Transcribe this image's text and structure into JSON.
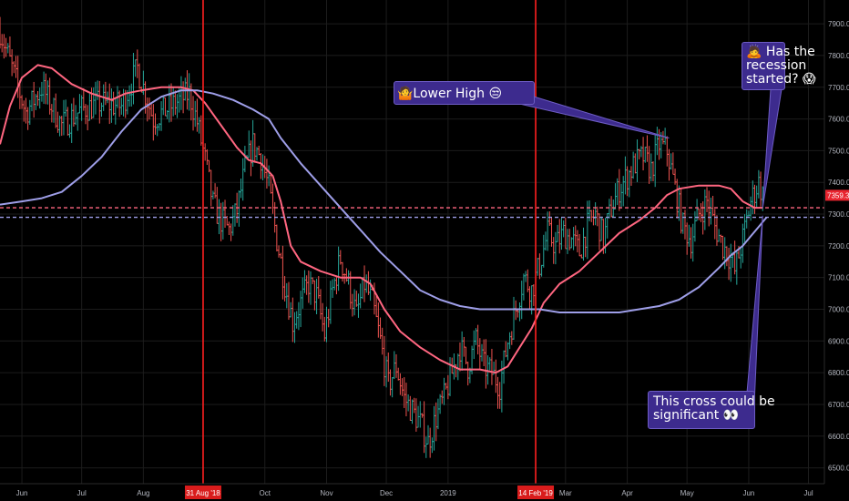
{
  "chart_data": {
    "type": "candlestick",
    "ylim": [
      6450,
      7975
    ],
    "y_ticks": [
      6500,
      6600,
      6700,
      6800,
      6900,
      7000,
      7100,
      7200,
      7300,
      7400,
      7500,
      7600,
      7700,
      7800,
      7900
    ],
    "y_tick_labels": [
      "6500.0",
      "6600.0",
      "6700.0",
      "6800.0",
      "6900.0",
      "7000.0",
      "7100.0",
      "7200.0",
      "7300.0",
      "7400.0",
      "7500.0",
      "7600.0",
      "7700.0",
      "7800.0",
      "7900.0"
    ],
    "x_ticks": [
      "Jun",
      "Jul",
      "Aug",
      "Oct",
      "Nov",
      "Dec",
      "2019",
      "Mar",
      "Apr",
      "May",
      "Jun",
      "Jul"
    ],
    "x_tick_days": [
      0,
      30,
      61,
      122,
      153,
      183,
      214,
      273,
      304,
      334,
      365,
      395
    ],
    "x_range_days": [
      -11,
      403
    ],
    "vertical_markers": [
      {
        "label": "31 Aug '18",
        "day": 91,
        "color": "#ff1f1f"
      },
      {
        "label": "14 Feb '19",
        "day": 258,
        "color": "#ff1f1f"
      }
    ],
    "last_price_label": "7359.3",
    "horizontal_levels": [
      {
        "value": 7320,
        "color": "#ff6680",
        "style": "dashed"
      },
      {
        "value": 7290,
        "color": "#9e9ee8",
        "style": "dashed"
      }
    ],
    "price_path": [
      [
        -11,
        7880
      ],
      [
        -5,
        7760
      ],
      [
        2,
        7620
      ],
      [
        10,
        7700
      ],
      [
        20,
        7580
      ],
      [
        30,
        7630
      ],
      [
        40,
        7650
      ],
      [
        50,
        7640
      ],
      [
        58,
        7760
      ],
      [
        66,
        7600
      ],
      [
        75,
        7640
      ],
      [
        84,
        7680
      ],
      [
        88,
        7590
      ],
      [
        92,
        7470
      ],
      [
        96,
        7330
      ],
      [
        100,
        7280
      ],
      [
        104,
        7250
      ],
      [
        108,
        7310
      ],
      [
        112,
        7440
      ],
      [
        116,
        7520
      ],
      [
        120,
        7480
      ],
      [
        124,
        7380
      ],
      [
        128,
        7220
      ],
      [
        132,
        7080
      ],
      [
        136,
        6960
      ],
      [
        140,
        7020
      ],
      [
        144,
        7080
      ],
      [
        148,
        7040
      ],
      [
        152,
        6920
      ],
      [
        156,
        7060
      ],
      [
        160,
        7160
      ],
      [
        164,
        7080
      ],
      [
        168,
        6980
      ],
      [
        172,
        7080
      ],
      [
        176,
        7020
      ],
      [
        180,
        6900
      ],
      [
        184,
        6760
      ],
      [
        188,
        6820
      ],
      [
        192,
        6720
      ],
      [
        196,
        6680
      ],
      [
        200,
        6640
      ],
      [
        204,
        6580
      ],
      [
        208,
        6660
      ],
      [
        212,
        6720
      ],
      [
        216,
        6800
      ],
      [
        220,
        6880
      ],
      [
        224,
        6820
      ],
      [
        228,
        6900
      ],
      [
        232,
        6820
      ],
      [
        236,
        6800
      ],
      [
        240,
        6760
      ],
      [
        244,
        6900
      ],
      [
        248,
        7000
      ],
      [
        252,
        7100
      ],
      [
        256,
        7060
      ],
      [
        260,
        7140
      ],
      [
        264,
        7240
      ],
      [
        268,
        7200
      ],
      [
        272,
        7240
      ],
      [
        276,
        7220
      ],
      [
        280,
        7180
      ],
      [
        284,
        7260
      ],
      [
        288,
        7300
      ],
      [
        292,
        7220
      ],
      [
        296,
        7320
      ],
      [
        300,
        7380
      ],
      [
        304,
        7420
      ],
      [
        308,
        7460
      ],
      [
        312,
        7480
      ],
      [
        316,
        7440
      ],
      [
        320,
        7520
      ],
      [
        324,
        7500
      ],
      [
        328,
        7380
      ],
      [
        332,
        7260
      ],
      [
        336,
        7220
      ],
      [
        340,
        7300
      ],
      [
        344,
        7340
      ],
      [
        348,
        7260
      ],
      [
        352,
        7200
      ],
      [
        356,
        7160
      ],
      [
        358,
        7120
      ],
      [
        362,
        7220
      ],
      [
        366,
        7340
      ],
      [
        370,
        7400
      ],
      [
        372,
        7360
      ]
    ],
    "series": [
      {
        "color": "#ff6680",
        "points": [
          [
            -11,
            7520
          ],
          [
            -6,
            7640
          ],
          [
            0,
            7730
          ],
          [
            8,
            7770
          ],
          [
            15,
            7760
          ],
          [
            25,
            7710
          ],
          [
            35,
            7680
          ],
          [
            45,
            7660
          ],
          [
            52,
            7680
          ],
          [
            60,
            7690
          ],
          [
            70,
            7700
          ],
          [
            80,
            7700
          ],
          [
            86,
            7690
          ],
          [
            92,
            7650
          ],
          [
            100,
            7580
          ],
          [
            108,
            7510
          ],
          [
            114,
            7470
          ],
          [
            120,
            7460
          ],
          [
            126,
            7420
          ],
          [
            130,
            7340
          ],
          [
            135,
            7200
          ],
          [
            140,
            7150
          ],
          [
            150,
            7120
          ],
          [
            160,
            7100
          ],
          [
            170,
            7100
          ],
          [
            175,
            7080
          ],
          [
            182,
            7000
          ],
          [
            190,
            6930
          ],
          [
            200,
            6880
          ],
          [
            210,
            6840
          ],
          [
            220,
            6810
          ],
          [
            230,
            6810
          ],
          [
            238,
            6800
          ],
          [
            244,
            6820
          ],
          [
            250,
            6880
          ],
          [
            256,
            6940
          ],
          [
            262,
            7020
          ],
          [
            270,
            7080
          ],
          [
            280,
            7120
          ],
          [
            290,
            7180
          ],
          [
            300,
            7240
          ],
          [
            310,
            7280
          ],
          [
            318,
            7320
          ],
          [
            324,
            7360
          ],
          [
            330,
            7380
          ],
          [
            340,
            7390
          ],
          [
            350,
            7390
          ],
          [
            356,
            7380
          ],
          [
            362,
            7340
          ],
          [
            368,
            7320
          ],
          [
            372,
            7320
          ]
        ]
      },
      {
        "color": "#9e9ee8",
        "points": [
          [
            -11,
            7330
          ],
          [
            0,
            7340
          ],
          [
            10,
            7350
          ],
          [
            20,
            7370
          ],
          [
            30,
            7420
          ],
          [
            40,
            7480
          ],
          [
            50,
            7560
          ],
          [
            60,
            7630
          ],
          [
            70,
            7670
          ],
          [
            80,
            7690
          ],
          [
            88,
            7690
          ],
          [
            96,
            7680
          ],
          [
            106,
            7660
          ],
          [
            116,
            7630
          ],
          [
            124,
            7600
          ],
          [
            130,
            7540
          ],
          [
            140,
            7460
          ],
          [
            150,
            7390
          ],
          [
            160,
            7320
          ],
          [
            170,
            7250
          ],
          [
            180,
            7180
          ],
          [
            190,
            7120
          ],
          [
            200,
            7060
          ],
          [
            210,
            7030
          ],
          [
            220,
            7010
          ],
          [
            230,
            7000
          ],
          [
            240,
            7000
          ],
          [
            250,
            7000
          ],
          [
            260,
            7000
          ],
          [
            270,
            6990
          ],
          [
            280,
            6990
          ],
          [
            290,
            6990
          ],
          [
            300,
            6990
          ],
          [
            310,
            7000
          ],
          [
            320,
            7010
          ],
          [
            330,
            7030
          ],
          [
            340,
            7070
          ],
          [
            350,
            7130
          ],
          [
            356,
            7170
          ],
          [
            362,
            7200
          ],
          [
            366,
            7230
          ],
          [
            370,
            7260
          ],
          [
            374,
            7290
          ]
        ]
      }
    ],
    "annotations": [
      {
        "icon": "🤷",
        "text": "Lower High 😒",
        "lines": [
          "Lower High 😒"
        ],
        "target": [
          325,
          7540
        ]
      },
      {
        "icon": "🙇",
        "text": "Has the recession started? 😱",
        "lines": [
          "🙇 Has the",
          "recession",
          "started? 😱"
        ],
        "target": [
          372,
          7320
        ]
      },
      {
        "text": "This cross could be significant 👀",
        "lines": [
          "This cross could be",
          "significant 👀"
        ],
        "target": [
          372,
          7295
        ]
      }
    ],
    "grid": true,
    "colors": {
      "background": "#000000",
      "grid": "#1c1c1c",
      "up": "#26a69a",
      "down": "#ef5350",
      "axis_text": "#b2b5be",
      "callout_fill": "#3d2b8e",
      "callout_border": "#6d5cc4"
    }
  },
  "callouts": {
    "lower_high": "🤷Lower High 😒",
    "recession": [
      "🙇 Has the",
      "recession",
      "started? 😱"
    ],
    "cross": [
      "This cross could be",
      "significant 👀"
    ]
  }
}
